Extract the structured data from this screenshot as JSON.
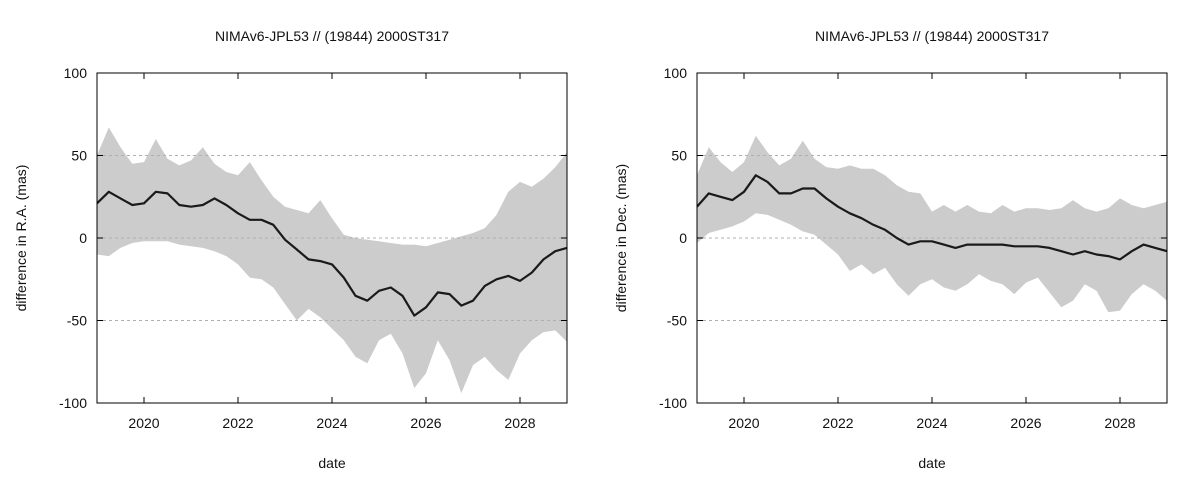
{
  "colors": {
    "band": "#cccccc",
    "line": "#1a1a1a",
    "grid": "#b0b0b0",
    "frame": "#000000"
  },
  "chart_data": [
    {
      "type": "area",
      "title": "NIMAv6-JPL53 // (19844) 2000ST317",
      "xlabel": "date",
      "ylabel": "difference in R.A. (mas)",
      "xlim": [
        2019.0,
        2029.0
      ],
      "ylim": [
        -100,
        100
      ],
      "xticks": [
        2020,
        2022,
        2024,
        2026,
        2028
      ],
      "yticks": [
        -100,
        -50,
        0,
        50,
        100
      ],
      "grid": "horizontal dashed",
      "series": [
        {
          "role": "band",
          "x": [
            2019.0,
            2019.25,
            2019.5,
            2019.75,
            2020.0,
            2020.25,
            2020.5,
            2020.75,
            2021.0,
            2021.25,
            2021.5,
            2021.75,
            2022.0,
            2022.25,
            2022.5,
            2022.75,
            2023.0,
            2023.25,
            2023.5,
            2023.75,
            2024.0,
            2024.25,
            2024.5,
            2024.75,
            2025.0,
            2025.25,
            2025.5,
            2025.75,
            2026.0,
            2026.25,
            2026.5,
            2026.75,
            2027.0,
            2027.25,
            2027.5,
            2027.75,
            2028.0,
            2028.25,
            2028.5,
            2028.75,
            2029.0
          ],
          "upper": [
            50,
            67,
            55,
            45,
            46,
            60,
            48,
            44,
            47,
            55,
            45,
            40,
            38,
            46,
            35,
            25,
            19,
            17,
            15,
            23,
            12,
            2,
            0,
            -1,
            -2,
            -3,
            -4,
            -4,
            -5,
            -3,
            -1,
            1,
            3,
            6,
            14,
            28,
            34,
            31,
            36,
            43,
            52
          ],
          "lower": [
            -10,
            -11,
            -6,
            -3,
            -2,
            -2,
            -2,
            -4,
            -5,
            -6,
            -8,
            -11,
            -16,
            -24,
            -25,
            -30,
            -40,
            -50,
            -43,
            -48,
            -55,
            -62,
            -72,
            -76,
            -62,
            -58,
            -70,
            -91,
            -82,
            -62,
            -74,
            -94,
            -77,
            -72,
            -80,
            -86,
            -70,
            -62,
            -57,
            -56,
            -63
          ]
        },
        {
          "role": "line",
          "x": [
            2019.0,
            2019.25,
            2019.5,
            2019.75,
            2020.0,
            2020.25,
            2020.5,
            2020.75,
            2021.0,
            2021.25,
            2021.5,
            2021.75,
            2022.0,
            2022.25,
            2022.5,
            2022.75,
            2023.0,
            2023.25,
            2023.5,
            2023.75,
            2024.0,
            2024.25,
            2024.5,
            2024.75,
            2025.0,
            2025.25,
            2025.5,
            2025.75,
            2026.0,
            2026.25,
            2026.5,
            2026.75,
            2027.0,
            2027.25,
            2027.5,
            2027.75,
            2028.0,
            2028.25,
            2028.5,
            2028.75,
            2029.0
          ],
          "values": [
            21,
            28,
            24,
            20,
            21,
            28,
            27,
            20,
            19,
            20,
            24,
            20,
            15,
            11,
            11,
            8,
            -1,
            -7,
            -13,
            -14,
            -16,
            -24,
            -35,
            -38,
            -32,
            -30,
            -35,
            -47,
            -42,
            -33,
            -34,
            -41,
            -38,
            -29,
            -25,
            -23,
            -26,
            -21,
            -13,
            -8,
            -6
          ]
        }
      ]
    },
    {
      "type": "area",
      "title": "NIMAv6-JPL53 // (19844) 2000ST317",
      "xlabel": "date",
      "ylabel": "difference in Dec. (mas)",
      "xlim": [
        2019.0,
        2029.0
      ],
      "ylim": [
        -100,
        100
      ],
      "xticks": [
        2020,
        2022,
        2024,
        2026,
        2028
      ],
      "yticks": [
        -100,
        -50,
        0,
        50,
        100
      ],
      "grid": "horizontal dashed",
      "series": [
        {
          "role": "band",
          "x": [
            2019.0,
            2019.25,
            2019.5,
            2019.75,
            2020.0,
            2020.25,
            2020.5,
            2020.75,
            2021.0,
            2021.25,
            2021.5,
            2021.75,
            2022.0,
            2022.25,
            2022.5,
            2022.75,
            2023.0,
            2023.25,
            2023.5,
            2023.75,
            2024.0,
            2024.25,
            2024.5,
            2024.75,
            2025.0,
            2025.25,
            2025.5,
            2025.75,
            2026.0,
            2026.25,
            2026.5,
            2026.75,
            2027.0,
            2027.25,
            2027.5,
            2027.75,
            2028.0,
            2028.25,
            2028.5,
            2028.75,
            2029.0
          ],
          "upper": [
            38,
            55,
            46,
            40,
            46,
            62,
            52,
            44,
            48,
            59,
            48,
            43,
            42,
            44,
            42,
            42,
            38,
            32,
            28,
            27,
            16,
            20,
            16,
            20,
            16,
            15,
            20,
            16,
            18,
            18,
            17,
            18,
            23,
            18,
            16,
            18,
            24,
            20,
            18,
            20,
            22
          ],
          "lower": [
            -3,
            3,
            5,
            7,
            10,
            15,
            14,
            11,
            8,
            4,
            2,
            -4,
            -10,
            -20,
            -16,
            -22,
            -18,
            -28,
            -35,
            -28,
            -25,
            -30,
            -32,
            -28,
            -22,
            -26,
            -28,
            -34,
            -27,
            -24,
            -33,
            -42,
            -38,
            -28,
            -32,
            -45,
            -44,
            -34,
            -28,
            -32,
            -38
          ]
        },
        {
          "role": "line",
          "x": [
            2019.0,
            2019.25,
            2019.5,
            2019.75,
            2020.0,
            2020.25,
            2020.5,
            2020.75,
            2021.0,
            2021.25,
            2021.5,
            2021.75,
            2022.0,
            2022.25,
            2022.5,
            2022.75,
            2023.0,
            2023.25,
            2023.5,
            2023.75,
            2024.0,
            2024.25,
            2024.5,
            2024.75,
            2025.0,
            2025.25,
            2025.5,
            2025.75,
            2026.0,
            2026.25,
            2026.5,
            2026.75,
            2027.0,
            2027.25,
            2027.5,
            2027.75,
            2028.0,
            2028.25,
            2028.5,
            2028.75,
            2029.0
          ],
          "values": [
            19,
            27,
            25,
            23,
            28,
            38,
            34,
            27,
            27,
            30,
            30,
            24,
            19,
            15,
            12,
            8,
            5,
            0,
            -4,
            -2,
            -2,
            -4,
            -6,
            -4,
            -4,
            -4,
            -4,
            -5,
            -5,
            -5,
            -6,
            -8,
            -10,
            -8,
            -10,
            -11,
            -13,
            -8,
            -4,
            -6,
            -8
          ]
        }
      ]
    }
  ]
}
